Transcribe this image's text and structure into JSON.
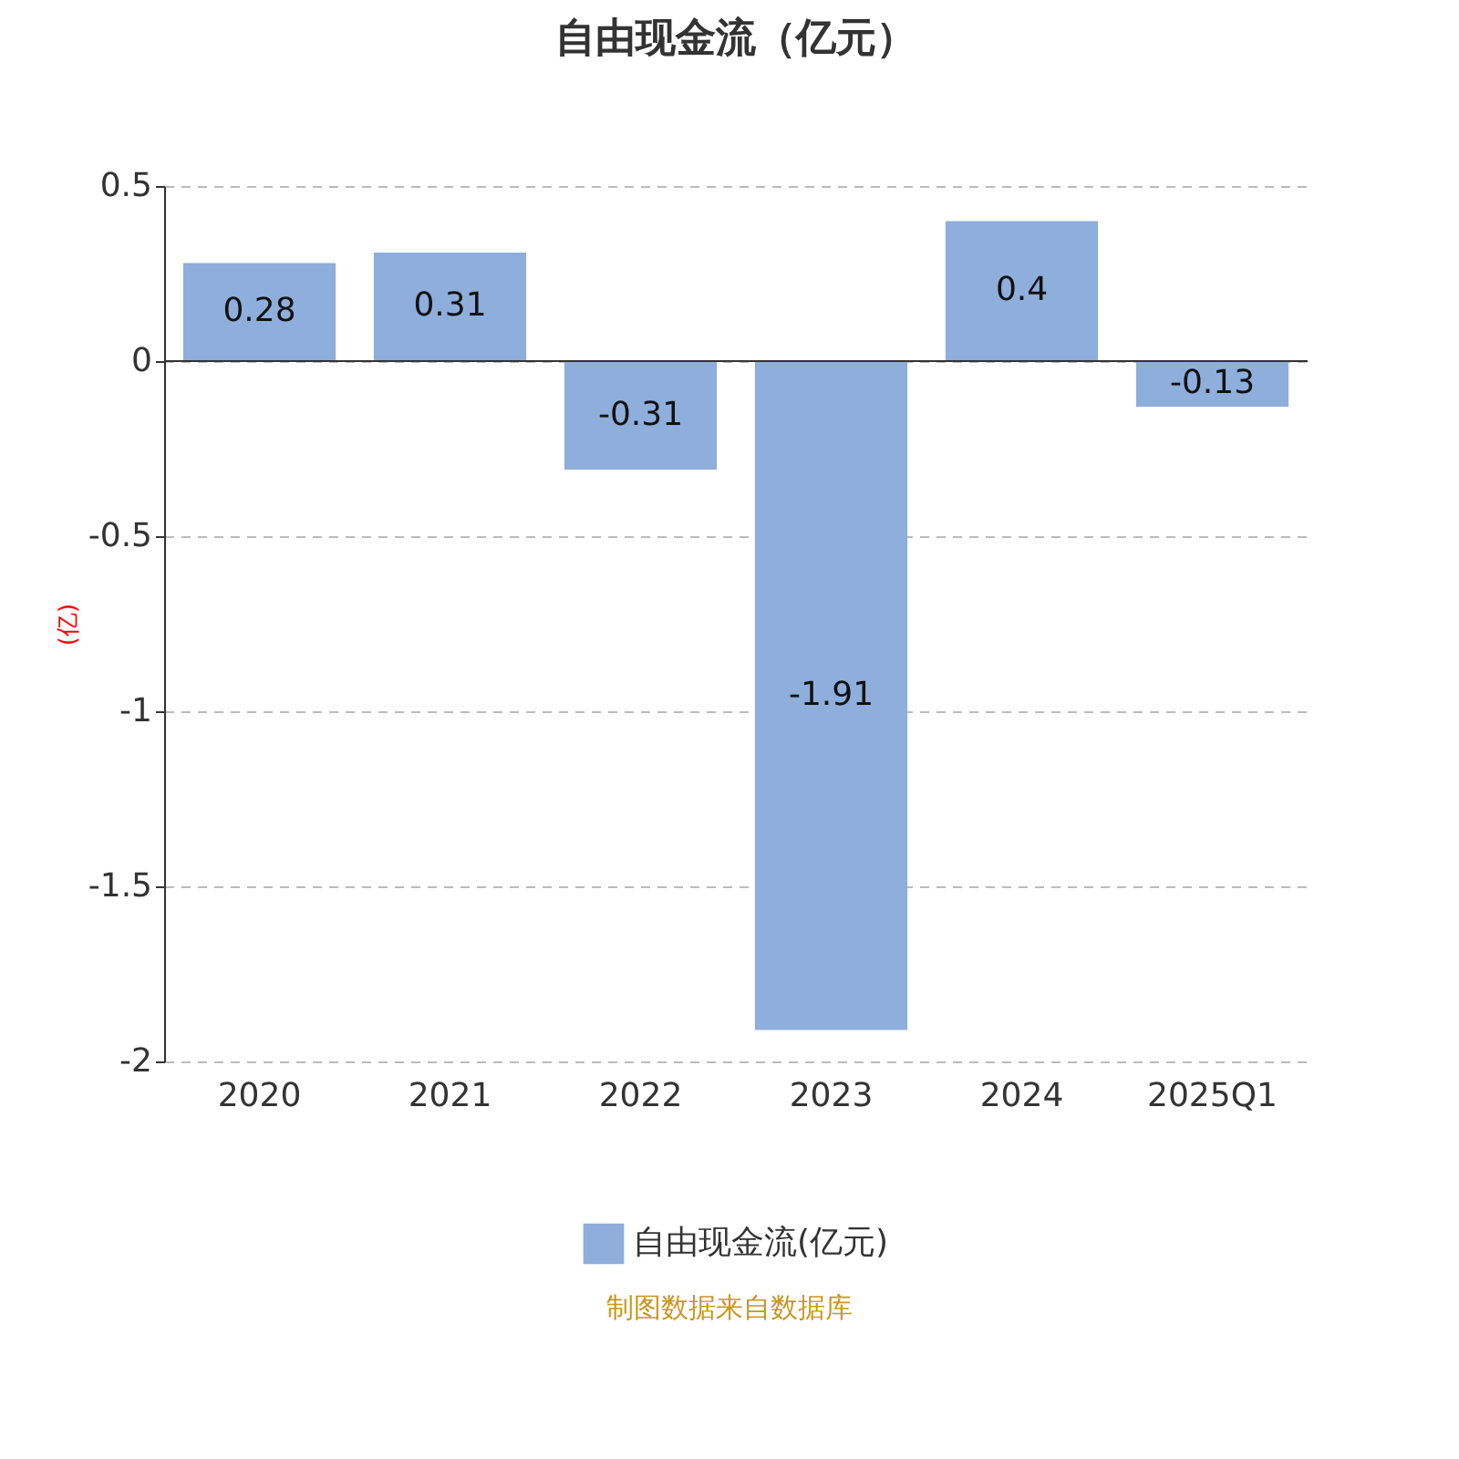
{
  "chart_data": {
    "type": "bar",
    "title": "自由现金流（亿元）",
    "ylabel": "(亿)",
    "categories": [
      "2020",
      "2021",
      "2022",
      "2023",
      "2024",
      "2025Q1"
    ],
    "series": [
      {
        "name": "自由现金流(亿元)",
        "color": "#8eaedb",
        "values": [
          0.28,
          0.31,
          -0.31,
          -1.91,
          0.4,
          -0.13
        ]
      }
    ],
    "ylim": [
      -2,
      0.5
    ],
    "yticks": [
      -2,
      -1.5,
      -1,
      -0.5,
      0,
      0.5
    ],
    "grid": "y",
    "legend": "bottom",
    "data_labels": true,
    "annotations": [
      "制图数据来自数据库"
    ]
  }
}
